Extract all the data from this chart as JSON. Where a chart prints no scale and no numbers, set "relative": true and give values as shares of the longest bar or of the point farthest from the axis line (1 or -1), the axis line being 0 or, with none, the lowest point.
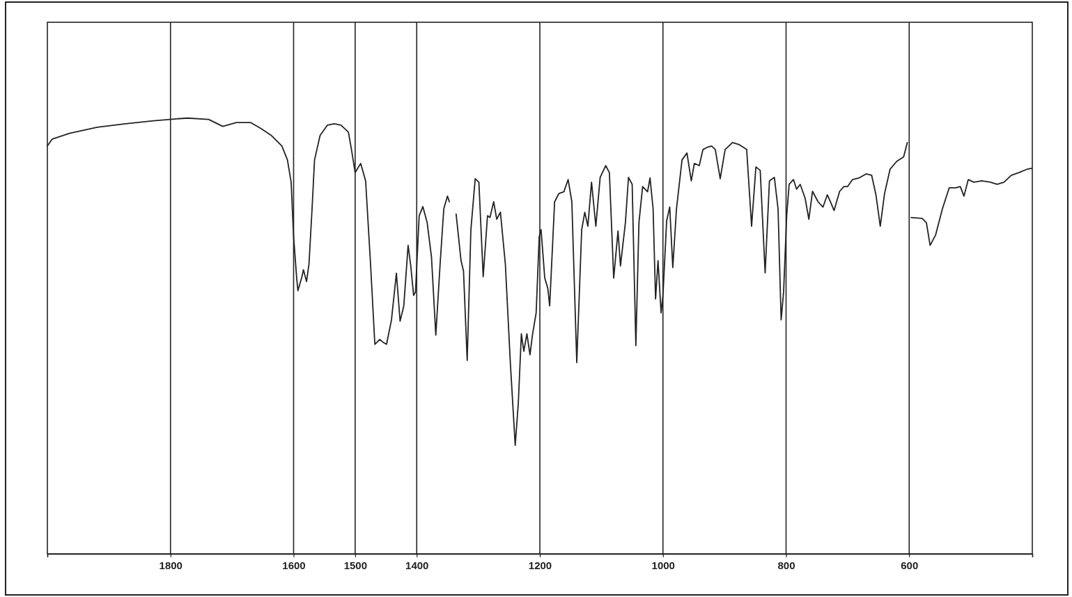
{
  "chart_data": {
    "type": "line",
    "relative": true,
    "xlim": [
      2000,
      400
    ],
    "xticks": [
      1800,
      1600,
      1500,
      1400,
      1200,
      1000,
      800,
      600
    ],
    "grid": "x",
    "line_style": "solid",
    "marker": "none",
    "series": [
      {
        "color": "#222222",
        "x": [
          2000,
          1992,
          1964,
          1919,
          1873,
          1828,
          1794,
          1772,
          1738,
          1715,
          1693,
          1670,
          1653,
          1636,
          1619,
          1610,
          1604,
          1600,
          1595,
          1593,
          1587,
          1584,
          1579,
          1575,
          1570,
          1566,
          1557,
          1545,
          1534,
          1523,
          1511,
          1506,
          1500,
          1491,
          1483,
          1475,
          1468,
          1460,
          1455,
          1449,
          1441,
          1433,
          1427,
          1421,
          1414,
          1410,
          1405,
          1402,
          1396,
          1390,
          1383,
          1376,
          1369,
          1362,
          1356,
          1350,
          1347,
          1343,
          1336,
          1328,
          1324,
          1318,
          1312,
          1305,
          1299,
          1292,
          1285,
          1281,
          1275,
          1270,
          1264,
          1256,
          1248,
          1240,
          1235,
          1230,
          1226,
          1221,
          1216,
          1212,
          1206,
          1201,
          1198,
          1192,
          1187,
          1184,
          1176,
          1169,
          1161,
          1154,
          1148,
          1140,
          1132,
          1127,
          1122,
          1116,
          1109,
          1102,
          1093,
          1087,
          1080,
          1073,
          1069,
          1061,
          1056,
          1050,
          1044,
          1039,
          1033,
          1025,
          1021,
          1016,
          1012,
          1008,
          1003,
          1000,
          994,
          989,
          984,
          978,
          969,
          961,
          954,
          949,
          941,
          935,
          928,
          921,
          915,
          907,
          899,
          887,
          876,
          864,
          856,
          849,
          842,
          834,
          827,
          819,
          813,
          808,
          804,
          799,
          795,
          788,
          783,
          777,
          769,
          763,
          757,
          748,
          740,
          733,
          727,
          722,
          713,
          706,
          700,
          692,
          681,
          670,
          661,
          654,
          647,
          640,
          631,
          620,
          609,
          603,
          600,
          597,
          579,
          572,
          566,
          557,
          546,
          535,
          524,
          517,
          511,
          504,
          495,
          482,
          468,
          457,
          446,
          434,
          422,
          408,
          401
        ],
        "values": [
          0.936,
          0.952,
          0.965,
          0.979,
          0.987,
          0.994,
          0.998,
          1,
          0.997,
          0.981,
          0.99,
          0.99,
          0.976,
          0.96,
          0.936,
          0.904,
          0.853,
          0.728,
          0.633,
          0.604,
          0.633,
          0.652,
          0.625,
          0.665,
          0.792,
          0.904,
          0.96,
          0.984,
          0.987,
          0.984,
          0.968,
          0.928,
          0.875,
          0.896,
          0.856,
          0.665,
          0.481,
          0.492,
          0.486,
          0.481,
          0.537,
          0.644,
          0.534,
          0.569,
          0.708,
          0.665,
          0.593,
          0.601,
          0.776,
          0.797,
          0.76,
          0.681,
          0.502,
          0.665,
          0.792,
          0.821,
          0.808,
          null,
          0.78,
          0.673,
          0.649,
          0.444,
          0.744,
          0.861,
          0.853,
          0.636,
          0.776,
          0.772,
          0.808,
          0.768,
          0.784,
          0.665,
          0.441,
          0.249,
          0.345,
          0.505,
          0.465,
          0.505,
          0.457,
          0.502,
          0.553,
          0.728,
          0.744,
          0.633,
          0.609,
          0.569,
          0.808,
          0.827,
          0.831,
          0.859,
          0.808,
          0.439,
          0.744,
          0.784,
          0.752,
          0.853,
          0.752,
          0.864,
          0.891,
          0.875,
          0.633,
          0.741,
          0.661,
          0.76,
          0.864,
          0.848,
          0.478,
          0.76,
          0.843,
          0.831,
          0.863,
          0.792,
          0.585,
          0.673,
          0.553,
          0.593,
          0.764,
          0.796,
          0.657,
          0.792,
          0.904,
          0.92,
          0.856,
          0.896,
          0.891,
          0.928,
          0.933,
          0.936,
          0.928,
          0.861,
          0.928,
          0.944,
          0.939,
          0.928,
          0.752,
          0.888,
          0.88,
          0.645,
          0.856,
          0.864,
          0.792,
          0.537,
          0.601,
          0.776,
          0.848,
          0.859,
          0.837,
          0.848,
          0.816,
          0.768,
          0.832,
          0.808,
          0.796,
          0.824,
          0.805,
          0.788,
          0.832,
          0.843,
          0.843,
          0.859,
          0.863,
          0.872,
          0.869,
          0.824,
          0.752,
          0.827,
          0.883,
          0.901,
          0.911,
          0.944,
          null,
          0.772,
          0.77,
          0.76,
          0.708,
          0.732,
          0.792,
          0.84,
          0.84,
          0.843,
          0.821,
          0.859,
          0.853,
          0.856,
          0.853,
          0.848,
          0.853,
          0.869,
          0.875,
          0.883,
          0.885
        ]
      }
    ]
  }
}
